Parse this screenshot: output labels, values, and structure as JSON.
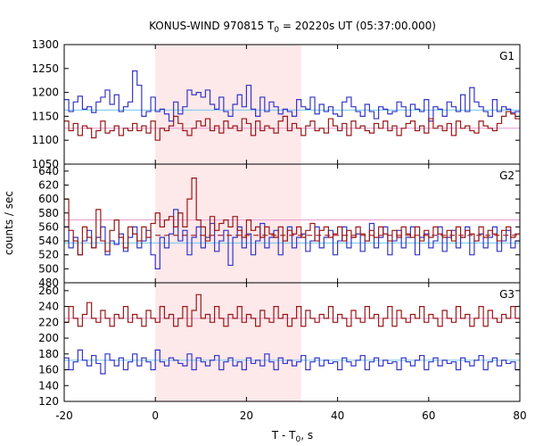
{
  "chart_data": {
    "type": "line",
    "title_main": "KONUS-WIND 970815 T",
    "title_sub": "0",
    "title_rest": " = 20220s UT (05:37:00.000)",
    "xlabel_main": "T - T",
    "xlabel_sub": "0",
    "xlabel_rest": ", s",
    "ylabel": "counts / sec",
    "xlim": [
      -20,
      80
    ],
    "x_ticks": [
      "-20",
      "0",
      "20",
      "40",
      "60",
      "80"
    ],
    "highlight_interval": [
      0,
      32
    ],
    "colors": {
      "blue": "#3535c8",
      "red": "#9a1818",
      "blue_mean": "#6fc8ee",
      "red_mean": "#e89ad0",
      "highlight": "#fde8ea"
    },
    "panels": [
      {
        "name": "G1",
        "ylim": [
          1050,
          1300
        ],
        "y_ticks": [
          "1050",
          "1100",
          "1150",
          "1200",
          "1250",
          "1300"
        ],
        "blue_mean": 1163,
        "red_mean": 1125,
        "red_dashed": null,
        "bin_start": -20,
        "bin_width": 1,
        "blue": [
          1185,
          1160,
          1180,
          1192,
          1165,
          1170,
          1158,
          1180,
          1190,
          1205,
          1175,
          1195,
          1160,
          1170,
          1180,
          1245,
          1215,
          1150,
          1160,
          1190,
          1160,
          1165,
          1155,
          1140,
          1180,
          1155,
          1170,
          1205,
          1195,
          1200,
          1190,
          1205,
          1175,
          1165,
          1190,
          1160,
          1150,
          1175,
          1195,
          1170,
          1215,
          1165,
          1150,
          1190,
          1160,
          1180,
          1170,
          1155,
          1165,
          1160,
          1150,
          1185,
          1170,
          1165,
          1190,
          1155,
          1175,
          1160,
          1170,
          1155,
          1150,
          1180,
          1190,
          1170,
          1160,
          1150,
          1175,
          1160,
          1145,
          1170,
          1165,
          1155,
          1160,
          1180,
          1170,
          1150,
          1175,
          1165,
          1160,
          1185,
          1140,
          1170,
          1165,
          1150,
          1180,
          1170,
          1160,
          1195,
          1160,
          1210,
          1180,
          1170,
          1160,
          1150,
          1185,
          1160,
          1170,
          1165,
          1158,
          1160
        ],
        "red": [
          1140,
          1120,
          1135,
          1110,
          1130,
          1125,
          1105,
          1120,
          1140,
          1115,
          1120,
          1130,
          1110,
          1125,
          1120,
          1135,
          1120,
          1130,
          1115,
          1140,
          1100,
          1125,
          1120,
          1130,
          1150,
          1135,
          1120,
          1110,
          1125,
          1140,
          1130,
          1145,
          1120,
          1130,
          1115,
          1140,
          1125,
          1130,
          1120,
          1145,
          1135,
          1110,
          1140,
          1120,
          1130,
          1125,
          1115,
          1140,
          1150,
          1120,
          1135,
          1125,
          1110,
          1130,
          1140,
          1120,
          1125,
          1115,
          1145,
          1130,
          1120,
          1135,
          1110,
          1140,
          1125,
          1130,
          1120,
          1115,
          1135,
          1125,
          1140,
          1120,
          1130,
          1110,
          1125,
          1135,
          1140,
          1120,
          1130,
          1115,
          1145,
          1125,
          1130,
          1120,
          1135,
          1110,
          1140,
          1125,
          1130,
          1120,
          1115,
          1140,
          1130,
          1125,
          1120,
          1135,
          1150,
          1160,
          1155,
          1145
        ]
      },
      {
        "name": "G2",
        "ylim": [
          480,
          650
        ],
        "y_ticks": [
          "480",
          "500",
          "520",
          "540",
          "560",
          "580",
          "600",
          "620",
          "640"
        ],
        "blue_mean": 537,
        "red_mean": 570,
        "red_dashed": 548,
        "bin_start": -20,
        "bin_width": 1,
        "blue": [
          560,
          530,
          545,
          520,
          540,
          555,
          530,
          545,
          560,
          520,
          540,
          535,
          550,
          525,
          545,
          560,
          530,
          540,
          555,
          520,
          500,
          545,
          530,
          550,
          585,
          540,
          555,
          520,
          545,
          560,
          530,
          545,
          565,
          525,
          540,
          555,
          505,
          545,
          560,
          530,
          550,
          520,
          540,
          565,
          530,
          545,
          555,
          520,
          540,
          560,
          530,
          545,
          550,
          525,
          540,
          560,
          530,
          545,
          555,
          520,
          540,
          560,
          530,
          545,
          550,
          525,
          540,
          565,
          530,
          545,
          560,
          520,
          540,
          555,
          530,
          545,
          560,
          520,
          545,
          550,
          530,
          540,
          560,
          525,
          545,
          555,
          530,
          545,
          560,
          520,
          540,
          550,
          530,
          545,
          560,
          525,
          540,
          555,
          530,
          540
        ],
        "red": [
          600,
          555,
          540,
          520,
          560,
          545,
          530,
          585,
          540,
          525,
          555,
          570,
          545,
          530,
          560,
          550,
          540,
          560,
          545,
          565,
          580,
          560,
          570,
          575,
          560,
          580,
          560,
          600,
          630,
          570,
          560,
          540,
          575,
          555,
          565,
          570,
          560,
          575,
          555,
          545,
          570,
          555,
          560,
          545,
          560,
          550,
          545,
          560,
          540,
          555,
          550,
          560,
          545,
          555,
          565,
          540,
          555,
          560,
          545,
          550,
          560,
          540,
          555,
          545,
          560,
          550,
          540,
          555,
          545,
          560,
          550,
          540,
          555,
          545,
          560,
          550,
          545,
          560,
          540,
          555,
          545,
          560,
          550,
          545,
          555,
          540,
          560,
          545,
          555,
          550,
          540,
          560,
          545,
          555,
          550,
          540,
          555,
          560,
          545,
          550
        ]
      },
      {
        "name": "G3",
        "ylim": [
          120,
          270
        ],
        "y_ticks": [
          "120",
          "140",
          "160",
          "180",
          "200",
          "220",
          "240",
          "260"
        ],
        "blue_mean": 172,
        "red_mean": 225,
        "red_dashed": null,
        "bin_start": -20,
        "bin_width": 1,
        "blue": [
          175,
          160,
          170,
          185,
          172,
          165,
          178,
          168,
          155,
          180,
          172,
          165,
          175,
          160,
          170,
          180,
          165,
          175,
          170,
          160,
          185,
          170,
          165,
          175,
          172,
          168,
          165,
          180,
          160,
          175,
          170,
          165,
          172,
          178,
          160,
          170,
          175,
          165,
          170,
          160,
          175,
          168,
          172,
          165,
          180,
          170,
          160,
          175,
          168,
          172,
          165,
          170,
          178,
          160,
          170,
          175,
          165,
          172,
          168,
          170,
          160,
          175,
          170,
          165,
          172,
          178,
          160,
          170,
          175,
          165,
          172,
          168,
          170,
          160,
          175,
          170,
          165,
          172,
          178,
          160,
          170,
          175,
          165,
          172,
          168,
          170,
          160,
          175,
          170,
          165,
          172,
          178,
          160,
          170,
          175,
          165,
          172,
          168,
          170,
          160
        ],
        "red": [
          220,
          240,
          225,
          215,
          230,
          245,
          225,
          220,
          235,
          225,
          215,
          230,
          225,
          240,
          220,
          230,
          225,
          215,
          235,
          225,
          220,
          240,
          225,
          230,
          215,
          225,
          240,
          215,
          235,
          255,
          225,
          230,
          220,
          240,
          225,
          215,
          230,
          225,
          240,
          220,
          230,
          225,
          215,
          235,
          225,
          220,
          240,
          225,
          230,
          215,
          225,
          240,
          215,
          235,
          225,
          220,
          230,
          225,
          240,
          220,
          230,
          225,
          215,
          235,
          225,
          220,
          240,
          225,
          230,
          215,
          225,
          240,
          215,
          235,
          225,
          220,
          230,
          225,
          240,
          220,
          230,
          225,
          215,
          235,
          225,
          220,
          240,
          225,
          230,
          215,
          225,
          240,
          215,
          235,
          225,
          220,
          230,
          225,
          240,
          225
        ]
      }
    ]
  }
}
